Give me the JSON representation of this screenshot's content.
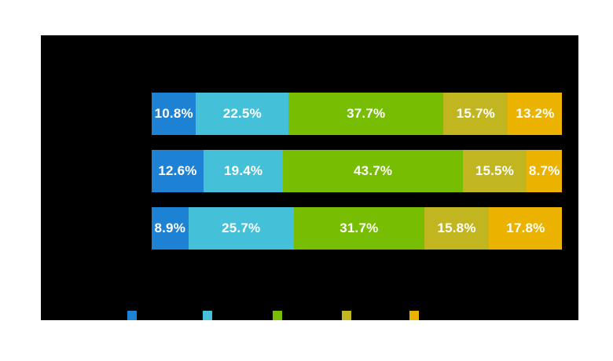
{
  "page": {
    "background_color": "#ffffff",
    "plot_background_color": "#000000"
  },
  "chart_data": {
    "type": "bar",
    "orientation": "horizontal",
    "stacked": true,
    "unit": "%",
    "title": "",
    "xlabel": "",
    "ylabel": "",
    "xlim": [
      0,
      100
    ],
    "grid": false,
    "legend_position": "bottom",
    "legend_style": "color swatches only (label text not visible against black background)",
    "categories": [
      "",
      "",
      ""
    ],
    "series": [
      {
        "name": "blue",
        "color": "#1E82D4",
        "values": [
          10.8,
          12.6,
          8.9
        ]
      },
      {
        "name": "cyan",
        "color": "#44C0D8",
        "values": [
          22.5,
          19.4,
          25.7
        ]
      },
      {
        "name": "green",
        "color": "#77BD02",
        "values": [
          37.7,
          43.7,
          31.7
        ]
      },
      {
        "name": "olive",
        "color": "#C1B620",
        "values": [
          15.7,
          15.5,
          15.8
        ]
      },
      {
        "name": "amber",
        "color": "#EBB200",
        "values": [
          13.2,
          8.7,
          17.8
        ]
      }
    ],
    "bar_labels": [
      [
        "10.8%",
        "22.5%",
        "37.7%",
        "15.7%",
        "13.2%"
      ],
      [
        "12.6%",
        "19.4%",
        "43.7%",
        "15.5%",
        "8.7%"
      ],
      [
        "8.9%",
        "25.7%",
        "31.7%",
        "15.8%",
        "17.8%"
      ]
    ],
    "bar_label_color": "#ffffff"
  }
}
